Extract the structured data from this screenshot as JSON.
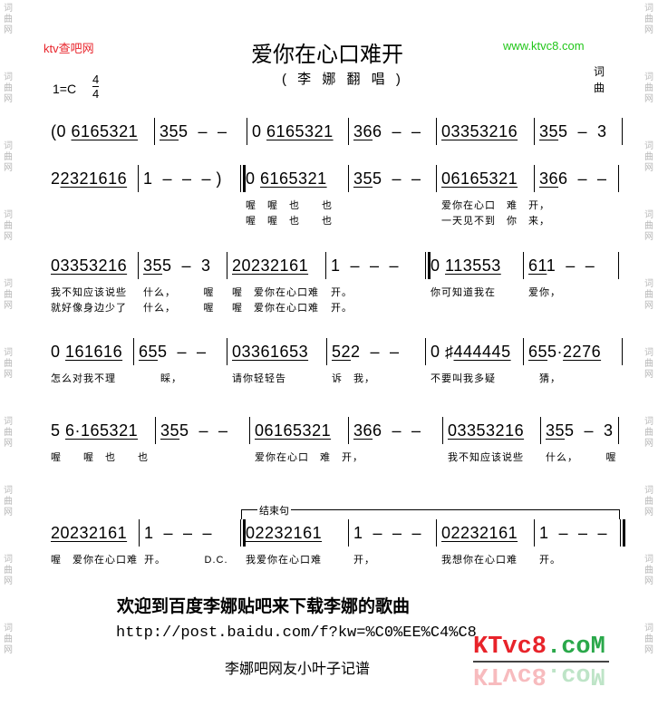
{
  "header": {
    "site_left": "ktv查吧网",
    "site_right": "www.ktvc8.com",
    "title": "爱你在心口难开",
    "subtitle": "( 李 娜 翻 唱 )",
    "key": "1=C",
    "time_top": "4",
    "time_bottom": "4",
    "credit_lyrics": "词",
    "credit_music": "曲"
  },
  "side_watermark": "词曲网",
  "ending_label": "结束句",
  "lines": [
    {
      "measures": [
        {
          "pre": "(0 ",
          "beam": "6165321",
          "post": ""
        },
        {
          "pre": "",
          "beam": "35",
          "post": "5  –  –"
        },
        {
          "pre": "0 ",
          "beam": "6165321",
          "post": ""
        },
        {
          "pre": "",
          "beam": "36",
          "post": "6  –  –"
        },
        {
          "pre": "",
          "beam": "03353216",
          "post": ""
        },
        {
          "pre": "",
          "beam": "35",
          "post": "5  –  3"
        }
      ]
    },
    {
      "measures": [
        {
          "pre": "2",
          "beam": "2321616",
          "post": ""
        },
        {
          "pre": "1  –  –  – )",
          "beam": "",
          "post": ""
        },
        {
          "pre": "0 ",
          "beam": "6165321",
          "post": "",
          "lyrics": [
            "喔　喔　也　　也",
            "喔　喔　也　　也"
          ]
        },
        {
          "pre": "",
          "beam": "35",
          "post": "5  –  –"
        },
        {
          "pre": "",
          "beam": "06165321",
          "post": "",
          "lyrics": [
            "爱你在心口　难　开，",
            "一天见不到　你　来，"
          ]
        },
        {
          "pre": "",
          "beam": "36",
          "post": "6  –  –"
        }
      ]
    },
    {
      "measures": [
        {
          "pre": "",
          "beam": "03353216",
          "post": "",
          "lyrics": [
            "我不知应该说些",
            "就好像身边少了"
          ]
        },
        {
          "pre": "",
          "beam": "35",
          "post": "5  –  3",
          "lyrics": [
            "什么，　　　喔",
            "什么，　　　喔"
          ]
        },
        {
          "pre": "",
          "beam": "20232161",
          "post": "",
          "lyrics": [
            "喔　爱你在心口难",
            "喔　爱你在心口难"
          ]
        },
        {
          "pre": "1  –  –  –",
          "beam": "",
          "post": "",
          "lyrics": [
            "开。",
            "开。"
          ]
        },
        {
          "pre": "0 ",
          "beam": "113553",
          "post": "",
          "lyrics": [
            "你可知道我在"
          ]
        },
        {
          "pre": "",
          "beam": "61",
          "post": "1  –  –",
          "lyrics": [
            "爱你，"
          ]
        }
      ]
    },
    {
      "measures": [
        {
          "pre": "0 ",
          "beam": "161616",
          "post": "",
          "lyrics": [
            "怎么对我不理"
          ]
        },
        {
          "pre": "",
          "beam": "65",
          "post": "5  –  –",
          "lyrics": [
            "　　睬，"
          ]
        },
        {
          "pre": "",
          "beam": "03361653",
          "post": "",
          "lyrics": [
            "请你轻轻告"
          ]
        },
        {
          "pre": "",
          "beam": "52",
          "post": "2  –  –",
          "lyrics": [
            "诉　我，"
          ]
        },
        {
          "pre": "0 ♯",
          "beam": "444445",
          "post": "",
          "lyrics": [
            "不要叫我多疑"
          ]
        },
        {
          "pre": "",
          "beam": "65",
          "post": "5·",
          "beam2": "2276",
          "lyrics": [
            "　猜，"
          ]
        }
      ]
    },
    {
      "measures": [
        {
          "pre": "5 ",
          "beam": "6·165321",
          "post": "",
          "lyrics": [
            "喔　　喔　也　　也"
          ]
        },
        {
          "pre": "",
          "beam": "35",
          "post": "5  –  –"
        },
        {
          "pre": "",
          "beam": "06165321",
          "post": "",
          "lyrics": [
            "爱你在心口　难　开，"
          ]
        },
        {
          "pre": "",
          "beam": "36",
          "post": "6  –  –"
        },
        {
          "pre": "",
          "beam": "03353216",
          "post": "",
          "lyrics": [
            "我不知应该说些"
          ]
        },
        {
          "pre": "",
          "beam": "35",
          "post": "5  –  3",
          "lyrics": [
            "什么，　　　喔"
          ]
        }
      ]
    },
    {
      "measures": [
        {
          "pre": "",
          "beam": "20232161",
          "post": "",
          "lyrics": [
            "喔　爱你在心口难"
          ]
        },
        {
          "pre": "1  –  –  –",
          "beam": "",
          "post": "",
          "lyrics": [
            "开。　　　　D.C."
          ]
        },
        {
          "pre": "",
          "beam": "02232161",
          "post": "",
          "lyrics": [
            "我爱你在心口难"
          ]
        },
        {
          "pre": "1  –  –  –",
          "beam": "",
          "post": "",
          "lyrics": [
            "开，"
          ]
        },
        {
          "pre": "",
          "beam": "02232161",
          "post": "",
          "lyrics": [
            "我想你在心口难"
          ]
        },
        {
          "pre": "1  –  –  –",
          "beam": "",
          "post": "",
          "lyrics": [
            "开。"
          ]
        }
      ]
    }
  ],
  "footer": {
    "welcome": "欢迎到百度李娜贴吧来下载李娜的歌曲",
    "url": "http://post.baidu.com/f?kw=%C0%EE%C4%C8",
    "credit": "李娜吧网友小叶子记谱",
    "logo_text": "KTvc8.coM",
    "logo_red": "#e8232a",
    "logo_green": "#2aa84a"
  },
  "colors": {
    "site_left": "#e8232a",
    "site_right": "#22c61a",
    "watermark": "#b8b8b8"
  }
}
